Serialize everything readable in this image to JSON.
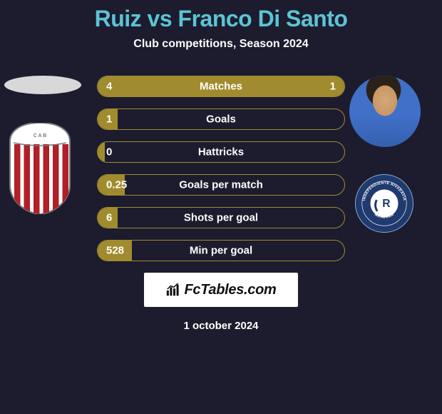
{
  "title": "Ruiz vs Franco Di Santo",
  "subtitle": "Club competitions, Season 2024",
  "date": "1 october 2024",
  "colors": {
    "background": "#1c1c2e",
    "title": "#5cc4d4",
    "text": "#ffffff",
    "bar_fill": "#a08c2e",
    "bar_border": "#a08c2e",
    "badge_bg": "#ffffff",
    "badge_text": "#111111"
  },
  "bars": [
    {
      "label": "Matches",
      "left_val": "4",
      "right_val": "1",
      "left_pct": 80,
      "right_pct": 20
    },
    {
      "label": "Goals",
      "left_val": "1",
      "right_val": "",
      "left_pct": 8,
      "right_pct": 0
    },
    {
      "label": "Hattricks",
      "left_val": "0",
      "right_val": "",
      "left_pct": 3,
      "right_pct": 0
    },
    {
      "label": "Goals per match",
      "left_val": "0.25",
      "right_val": "",
      "left_pct": 11,
      "right_pct": 0
    },
    {
      "label": "Shots per goal",
      "left_val": "6",
      "right_val": "",
      "left_pct": 8,
      "right_pct": 0
    },
    {
      "label": "Min per goal",
      "left_val": "528",
      "right_val": "",
      "left_pct": 14,
      "right_pct": 0
    }
  ],
  "badge_text": "FcTables.com",
  "left_crest": {
    "type": "shield-striped",
    "stripe_color": "#b02028",
    "bg": "#ffffff",
    "border": "#7a7a7a"
  },
  "right_crest": {
    "type": "circle-ribbon",
    "bg": "#1f3a6e",
    "accent": "#ffffff",
    "text_top": "INDEPENDIENTE RIVADAVIA",
    "text_bottom": "MENDOZA"
  }
}
